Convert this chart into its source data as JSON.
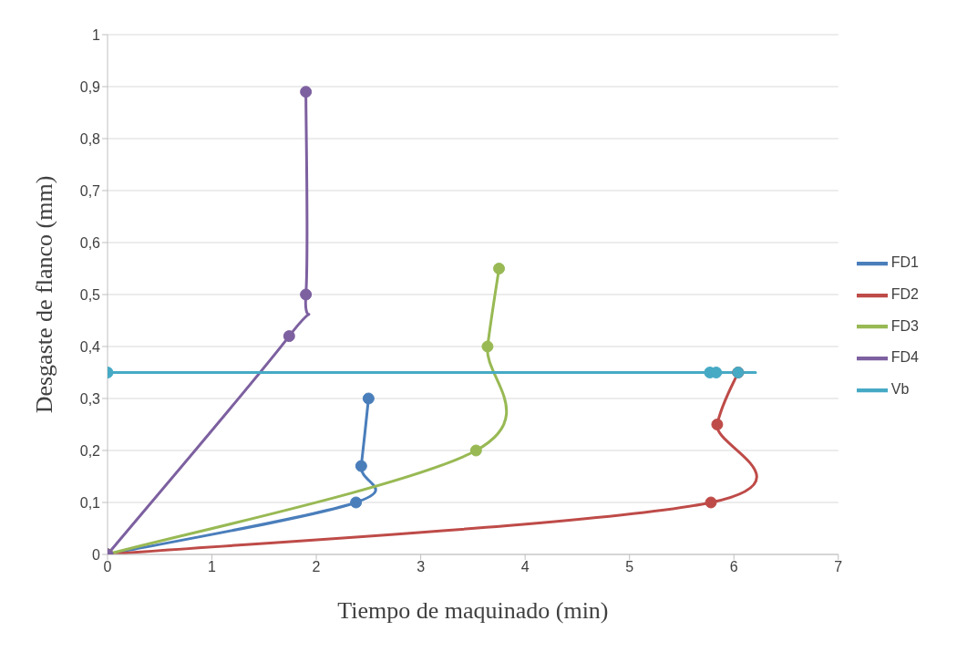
{
  "chart_data": {
    "type": "line",
    "xlabel": "Tiempo de maquinado (min)",
    "ylabel": "Desgaste de flanco (mm)",
    "xlim": [
      0,
      7
    ],
    "xticks": [
      0,
      1,
      2,
      3,
      4,
      5,
      6,
      7
    ],
    "ylim": [
      0,
      1
    ],
    "yticks": [
      0,
      {
        "value": 0.1,
        "label": "0,1"
      },
      {
        "value": 0.2,
        "label": "0,2"
      },
      {
        "value": 0.3,
        "label": "0,3"
      },
      {
        "value": 0.4,
        "label": "0,4"
      },
      {
        "value": 0.5,
        "label": "0,5"
      },
      {
        "value": 0.6,
        "label": "0,6"
      },
      {
        "value": 0.7,
        "label": "0,7"
      },
      {
        "value": 0.8,
        "label": "0,8"
      },
      {
        "value": 0.9,
        "label": "0,9"
      },
      1
    ],
    "grid": "y",
    "legend": "right",
    "marker": "circle",
    "series": [
      {
        "name": "FD1",
        "color": "#4a7ebb",
        "x": [
          0,
          2.38,
          2.43,
          2.5
        ],
        "values": [
          0,
          0.1,
          0.17,
          0.3
        ]
      },
      {
        "name": "FD2",
        "color": "#be4b48",
        "x": [
          0,
          5.78,
          5.84,
          6.04
        ],
        "values": [
          0,
          0.1,
          0.25,
          0.35
        ]
      },
      {
        "name": "FD3",
        "color": "#98b954",
        "x": [
          0,
          3.53,
          3.64,
          3.75
        ],
        "values": [
          0,
          0.2,
          0.4,
          0.55
        ]
      },
      {
        "name": "FD4",
        "color": "#7d60a0",
        "x": [
          0,
          1.74,
          1.9,
          1.9
        ],
        "values": [
          0,
          0.42,
          0.5,
          0.89
        ]
      },
      {
        "name": "Vb",
        "color": "#46aac5",
        "x": [
          0,
          5.77,
          5.83,
          6.04
        ],
        "values": [
          0.35,
          0.35,
          0.35,
          0.35
        ]
      }
    ]
  }
}
